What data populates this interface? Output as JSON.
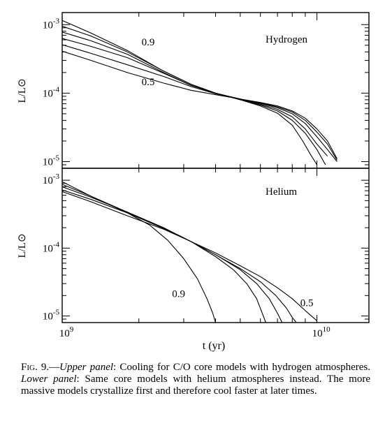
{
  "chart_data": [
    {
      "type": "line",
      "panel": "upper",
      "annotation": "Hydrogen",
      "ylabel": "L/L⊙",
      "xlabel": "",
      "xscale": "log",
      "yscale": "log",
      "xlim": [
        1000000000.0,
        16000000000.0
      ],
      "ylim": [
        8e-06,
        0.0015
      ],
      "y_tick_labels": [
        {
          "base": "10",
          "exp": "-3",
          "value": 0.001
        },
        {
          "base": "10",
          "exp": "-4",
          "value": 0.0001
        },
        {
          "base": "10",
          "exp": "-5",
          "value": 1e-05
        }
      ],
      "curve_labels": [
        {
          "text": "0.9",
          "x": 2050000000.0,
          "y": 0.0005
        },
        {
          "text": "0.5",
          "x": 2050000000.0,
          "y": 0.00013
        }
      ],
      "series": [
        {
          "x": [
            1000000000.0,
            1300000000.0,
            1800000000.0,
            2500000000.0,
            3200000000.0,
            4000000000.0,
            5000000000.0,
            6000000000.0,
            7000000000.0,
            8000000000.0,
            8800000000.0,
            9400000000.0,
            10000000000.0
          ],
          "y": [
            0.00115,
            0.00075,
            0.00042,
            0.00021,
            0.000135,
            0.0001,
            8e-05,
            6.5e-05,
            5.1e-05,
            3.4e-05,
            2e-05,
            1.3e-05,
            9e-06
          ]
        },
        {
          "x": [
            1000000000.0,
            1300000000.0,
            1800000000.0,
            2500000000.0,
            3200000000.0,
            4000000000.0,
            5000000000.0,
            6000000000.0,
            7000000000.0,
            8000000000.0,
            9000000000.0,
            10000000000.0,
            10800000000.0
          ],
          "y": [
            0.00095,
            0.00068,
            0.0004,
            0.00021,
            0.000135,
            0.0001,
            8e-05,
            6.7e-05,
            5.5e-05,
            4e-05,
            2.6e-05,
            1.5e-05,
            9e-06
          ]
        },
        {
          "x": [
            1000000000.0,
            1300000000.0,
            1800000000.0,
            2500000000.0,
            3200000000.0,
            4000000000.0,
            5000000000.0,
            6000000000.0,
            7000000000.0,
            8000000000.0,
            9000000000.0,
            10000000000.0,
            11000000000.0
          ],
          "y": [
            0.00078,
            0.00058,
            0.00037,
            0.0002,
            0.00013,
            0.0001,
            8.1e-05,
            6.9e-05,
            5.8e-05,
            4.5e-05,
            3e-05,
            1.8e-05,
            1.2e-05
          ]
        },
        {
          "x": [
            1000000000.0,
            1300000000.0,
            1800000000.0,
            2500000000.0,
            3200000000.0,
            4000000000.0,
            5000000000.0,
            6000000000.0,
            7000000000.0,
            8000000000.0,
            9000000000.0,
            10000000000.0,
            11000000000.0,
            12000000000.0
          ],
          "y": [
            0.00063,
            0.00048,
            0.00033,
            0.000195,
            0.00013,
            0.0001,
            8.2e-05,
            7.1e-05,
            6.1e-05,
            5e-05,
            3.6e-05,
            2.3e-05,
            1.5e-05,
            1e-05
          ]
        },
        {
          "x": [
            1000000000.0,
            1300000000.0,
            1800000000.0,
            2500000000.0,
            3200000000.0,
            4000000000.0,
            5000000000.0,
            6000000000.0,
            7000000000.0,
            8000000000.0,
            9000000000.0,
            10000000000.0,
            11000000000.0,
            12000000000.0
          ],
          "y": [
            0.00051,
            0.00038,
            0.00026,
            0.000175,
            0.000125,
            9.8e-05,
            8.2e-05,
            7.2e-05,
            6.3e-05,
            5.3e-05,
            4e-05,
            2.7e-05,
            1.8e-05,
            1.05e-05
          ]
        },
        {
          "x": [
            1000000000.0,
            1300000000.0,
            1800000000.0,
            2500000000.0,
            3200000000.0,
            4000000000.0,
            5000000000.0,
            6000000000.0,
            7000000000.0,
            8000000000.0,
            9000000000.0,
            10000000000.0,
            11000000000.0,
            12000000000.0
          ],
          "y": [
            0.00041,
            0.0003,
            0.0002,
            0.00014,
            0.00011,
            9.5e-05,
            8.2e-05,
            7.3e-05,
            6.5e-05,
            5.5e-05,
            4.3e-05,
            3e-05,
            2e-05,
            1.1e-05
          ]
        }
      ]
    },
    {
      "type": "line",
      "panel": "lower",
      "annotation": "Helium",
      "ylabel": "L/L⊙",
      "xlabel": "t (yr)",
      "xscale": "log",
      "yscale": "log",
      "xlim": [
        1000000000.0,
        16000000000.0
      ],
      "ylim": [
        8e-06,
        0.0015
      ],
      "x_tick_labels": [
        {
          "base": "10",
          "exp": "9",
          "value": 1000000000
        },
        {
          "base": "10",
          "exp": "10",
          "value": 10000000000
        }
      ],
      "y_tick_labels": [
        {
          "base": "10",
          "exp": "-3",
          "value": 0.001
        },
        {
          "base": "10",
          "exp": "-4",
          "value": 0.0001
        },
        {
          "base": "10",
          "exp": "-5",
          "value": 1e-05
        }
      ],
      "curve_labels": [
        {
          "text": "0.9",
          "x": 2700000000.0,
          "y": 1.9e-05
        },
        {
          "text": "0.5",
          "x": 8600000000.0,
          "y": 1.4e-05
        }
      ],
      "series": [
        {
          "x": [
            1000000000.0,
            1300000000.0,
            1800000000.0,
            2200000000.0,
            2600000000.0,
            3000000000.0,
            3400000000.0,
            3700000000.0,
            3900000000.0,
            4000000000.0
          ],
          "y": [
            0.00095,
            0.00058,
            0.00033,
            0.00022,
            0.00013,
            7e-05,
            3.5e-05,
            1.8e-05,
            1.1e-05,
            8e-06
          ]
        },
        {
          "x": [
            1000000000.0,
            1300000000.0,
            1800000000.0,
            2500000000.0,
            3200000000.0,
            4000000000.0,
            4700000000.0,
            5300000000.0,
            5800000000.0,
            6100000000.0,
            6300000000.0
          ],
          "y": [
            0.00087,
            0.00058,
            0.00034,
            0.0002,
            0.000125,
            7.5e-05,
            4.8e-05,
            3e-05,
            1.8e-05,
            1.1e-05,
            8e-06
          ]
        },
        {
          "x": [
            1000000000.0,
            1300000000.0,
            1800000000.0,
            2500000000.0,
            3200000000.0,
            4000000000.0,
            5000000000.0,
            5800000000.0,
            6500000000.0,
            7000000000.0,
            7300000000.0
          ],
          "y": [
            0.0008,
            0.00056,
            0.00034,
            0.0002,
            0.000125,
            8e-05,
            4.8e-05,
            3e-05,
            1.8e-05,
            1.1e-05,
            8e-06
          ]
        },
        {
          "x": [
            1000000000.0,
            1300000000.0,
            1800000000.0,
            2500000000.0,
            3200000000.0,
            4000000000.0,
            5000000000.0,
            6000000000.0,
            6900000000.0,
            7600000000.0,
            8000000000.0,
            8300000000.0
          ],
          "y": [
            0.00072,
            0.00052,
            0.00033,
            0.000195,
            0.000125,
            8e-05,
            5e-05,
            3.2e-05,
            2e-05,
            1.3e-05,
            9.5e-06,
            8e-06
          ]
        },
        {
          "x": [
            1000000000.0,
            1300000000.0,
            1800000000.0,
            2500000000.0,
            3200000000.0,
            4000000000.0,
            5000000000.0,
            6000000000.0,
            7000000000.0,
            8000000000.0,
            9000000000.0,
            10000000000.0
          ],
          "y": [
            0.00068,
            0.00048,
            0.0003,
            0.00019,
            0.000125,
            8.5e-05,
            5.5e-05,
            3.8e-05,
            2.6e-05,
            1.8e-05,
            1.2e-05,
            8.5e-06
          ]
        }
      ]
    }
  ],
  "caption": {
    "label": "Fig. 9.",
    "dash": "—",
    "upper_title": "Upper panel",
    "upper_text": ": Cooling for C/O core models with hydrogen atmospheres. ",
    "lower_title": "Lower panel",
    "lower_text": ": Same core models with helium atmospheres instead. The more massive models crystallize first and therefore cool faster at later times."
  }
}
